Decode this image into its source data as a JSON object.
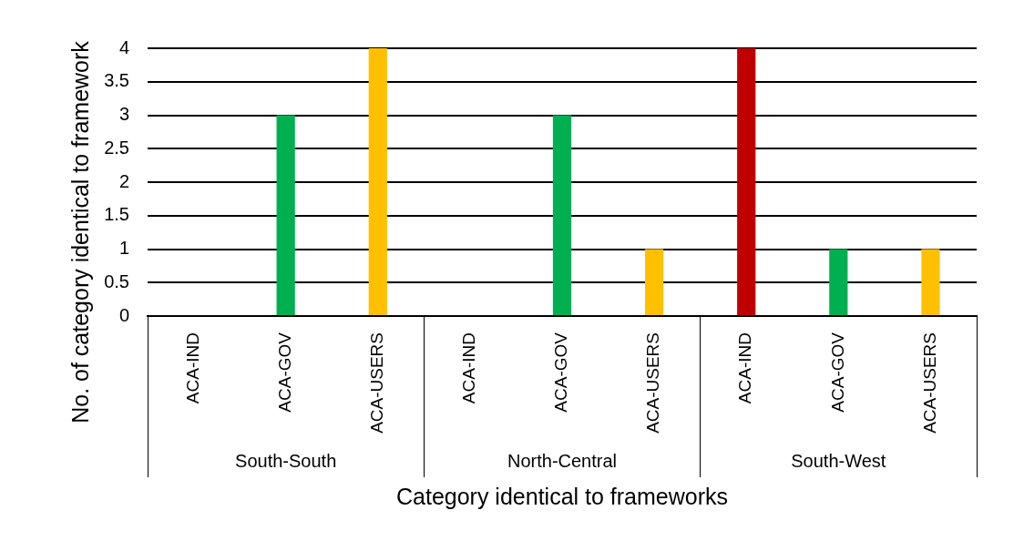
{
  "chart_data": {
    "type": "bar",
    "categories": [
      "ACA-IND",
      "ACA-GOV",
      "ACA-USERS",
      "ACA-IND",
      "ACA-GOV",
      "ACA-USERS",
      "ACA-IND",
      "ACA-GOV",
      "ACA-USERS"
    ],
    "values": [
      0,
      3,
      4,
      0,
      3,
      1,
      4,
      1,
      1
    ],
    "colors": [
      "#4f81bd",
      "#00b050",
      "#ffc000",
      "#4f81bd",
      "#00b050",
      "#ffc000",
      "#c00000",
      "#00b050",
      "#ffc000"
    ],
    "annotations": [
      "South-South",
      "North-Central",
      "South-West"
    ],
    "xlabel": "Category identical to frameworks",
    "ylabel": "No. of category identical to framework",
    "ylim": [
      0,
      4
    ],
    "yticks": [
      0,
      0.5,
      1,
      1.5,
      2,
      2.5,
      3,
      3.5,
      4
    ],
    "grid": "y"
  }
}
